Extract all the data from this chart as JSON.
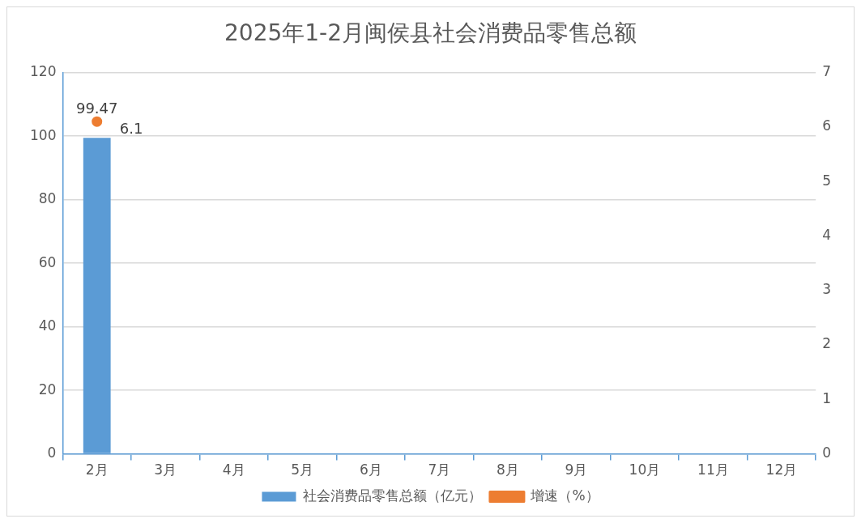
{
  "chart_data": {
    "type": "bar",
    "title": "2025年1-2月闽侯县社会消费品零售总额",
    "categories": [
      "2月",
      "3月",
      "4月",
      "5月",
      "6月",
      "7月",
      "8月",
      "9月",
      "10月",
      "11月",
      "12月"
    ],
    "series": [
      {
        "name": "社会消费品零售总额（亿元）",
        "color": "#5b9bd5",
        "values": [
          99.47,
          null,
          null,
          null,
          null,
          null,
          null,
          null,
          null,
          null,
          null
        ]
      },
      {
        "name": "增速（%）",
        "type": "line",
        "axis": "y2",
        "color": "#ed7d31",
        "values": [
          6.1,
          null,
          null,
          null,
          null,
          null,
          null,
          null,
          null,
          null,
          null
        ]
      }
    ],
    "ylim": [
      0,
      120
    ],
    "yticks": [
      0,
      20,
      40,
      60,
      80,
      100,
      120
    ],
    "y2lim": [
      0,
      7
    ],
    "y2ticks": [
      0,
      1,
      2,
      3,
      4,
      5,
      6,
      7
    ],
    "grid": "y",
    "legend": "bottom",
    "marker": "circle",
    "data_labels": true
  }
}
